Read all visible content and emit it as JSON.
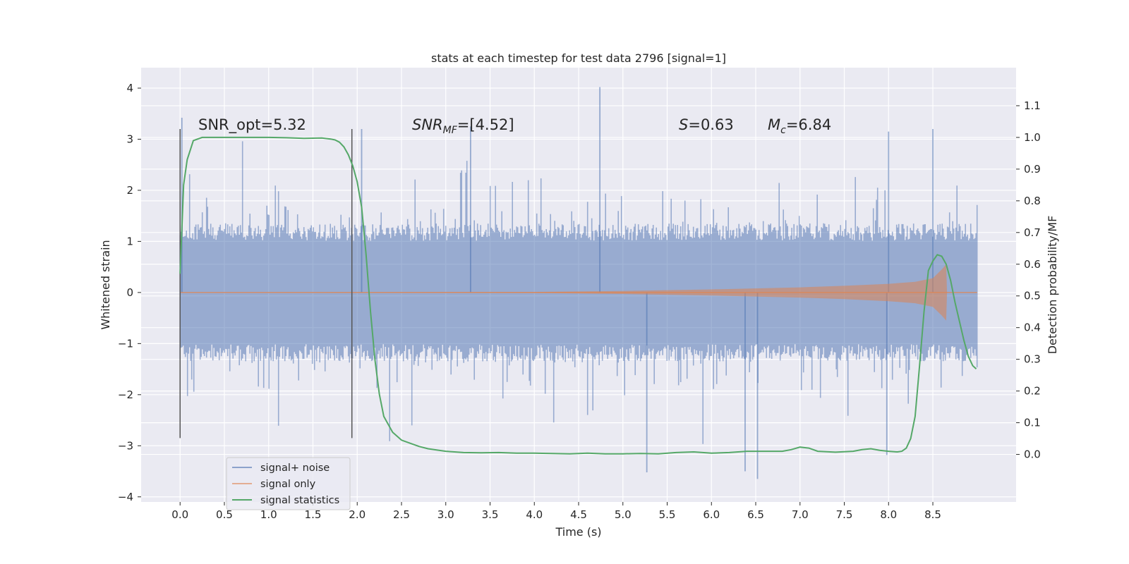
{
  "chart_data": {
    "type": "line",
    "title": "stats at each timestep for test data 2796 [signal=1]",
    "xlabel": "Time (s)",
    "ylabel": "Whitened strain",
    "y2label": "Detection probability/MF",
    "xlim": [
      -0.44,
      9.44
    ],
    "ylim": [
      -4.1,
      4.4
    ],
    "y2lim": [
      -0.15,
      1.22
    ],
    "x_ticks": [
      0.0,
      0.5,
      1.0,
      1.5,
      2.0,
      2.5,
      3.0,
      3.5,
      4.0,
      4.5,
      5.0,
      5.5,
      6.0,
      6.5,
      7.0,
      7.5,
      8.0,
      8.5
    ],
    "x_tick_labels": [
      "0.0",
      "0.5",
      "1.0",
      "1.5",
      "2.0",
      "2.5",
      "3.0",
      "3.5",
      "4.0",
      "4.5",
      "5.0",
      "5.5",
      "6.0",
      "6.5",
      "7.0",
      "7.5",
      "8.0",
      "8.5"
    ],
    "y_ticks": [
      -4,
      -3,
      -2,
      -1,
      0,
      1,
      2,
      3,
      4
    ],
    "y_tick_labels": [
      "−4",
      "−3",
      "−2",
      "−1",
      "0",
      "1",
      "2",
      "3",
      "4"
    ],
    "y2_ticks": [
      0.0,
      0.1,
      0.2,
      0.3,
      0.4,
      0.5,
      0.6,
      0.7,
      0.8,
      0.9,
      1.0,
      1.1
    ],
    "y2_tick_labels": [
      "0.0",
      "0.1",
      "0.2",
      "0.3",
      "0.4",
      "0.5",
      "0.6",
      "0.7",
      "0.8",
      "0.9",
      "1.0",
      "1.1"
    ],
    "annotations": {
      "snr_opt": "SNR_opt=5.32",
      "snr_mf_main": "SNR",
      "snr_mf_sub": "MF",
      "snr_mf_value": "=[4.52]",
      "s_main": "S",
      "s_value": "=0.63",
      "mc_main": "M",
      "mc_sub": "c",
      "mc_value": "=6.84"
    },
    "markers": [
      {
        "x": 0.0,
        "y_range": [
          -2.85,
          3.2
        ]
      },
      {
        "x": 1.94,
        "y_range": [
          -2.85,
          3.2
        ]
      }
    ],
    "series": [
      {
        "name": "signal+ noise",
        "color": "#4c72b0",
        "x_range": [
          0.0,
          9.0
        ],
        "envelope_typical": [
          -1.35,
          1.35
        ],
        "peak_max": 4.02,
        "peak_min": -3.65,
        "notable_peaks": [
          {
            "x": 0.02,
            "y": 3.42
          },
          {
            "x": 2.05,
            "y": 3.2
          },
          {
            "x": 3.28,
            "y": 3.25
          },
          {
            "x": 4.74,
            "y": 4.02
          },
          {
            "x": 5.27,
            "y": -3.52
          },
          {
            "x": 6.38,
            "y": -3.5
          },
          {
            "x": 6.52,
            "y": -3.65
          },
          {
            "x": 8.0,
            "y": 3.15
          },
          {
            "x": 8.5,
            "y": 3.2
          },
          {
            "x": 7.98,
            "y": -3.18
          }
        ]
      },
      {
        "name": "signal only",
        "color": "#dd8452",
        "x": [
          0.0,
          4.0,
          5.0,
          6.0,
          7.0,
          7.5,
          8.0,
          8.3,
          8.5,
          8.6,
          8.65,
          8.66,
          9.0
        ],
        "amplitude": [
          0.0,
          0.01,
          0.03,
          0.06,
          0.1,
          0.13,
          0.17,
          0.21,
          0.28,
          0.45,
          0.55,
          0.0,
          0.0
        ]
      },
      {
        "name": "signal statistics",
        "color": "#55a868",
        "axis": "right",
        "x": [
          0.0,
          0.04,
          0.08,
          0.15,
          0.25,
          0.4,
          0.6,
          0.8,
          1.0,
          1.2,
          1.4,
          1.6,
          1.7,
          1.75,
          1.8,
          1.85,
          1.9,
          1.95,
          2.0,
          2.05,
          2.1,
          2.15,
          2.2,
          2.25,
          2.3,
          2.4,
          2.5,
          2.6,
          2.7,
          2.8,
          3.0,
          3.2,
          3.4,
          3.6,
          3.8,
          4.0,
          4.2,
          4.4,
          4.6,
          4.8,
          5.0,
          5.2,
          5.4,
          5.6,
          5.8,
          6.0,
          6.2,
          6.4,
          6.6,
          6.8,
          6.9,
          7.0,
          7.1,
          7.2,
          7.4,
          7.6,
          7.7,
          7.8,
          7.9,
          8.0,
          8.1,
          8.15,
          8.2,
          8.25,
          8.3,
          8.35,
          8.4,
          8.45,
          8.5,
          8.55,
          8.6,
          8.65,
          8.7,
          8.75,
          8.8,
          8.85,
          8.9,
          8.95,
          8.99
        ],
        "y": [
          0.57,
          0.85,
          0.93,
          0.99,
          1.0,
          1.0,
          1.0,
          1.0,
          1.0,
          0.999,
          0.997,
          0.998,
          0.995,
          0.992,
          0.985,
          0.97,
          0.945,
          0.91,
          0.86,
          0.78,
          0.63,
          0.45,
          0.3,
          0.19,
          0.12,
          0.07,
          0.045,
          0.035,
          0.025,
          0.018,
          0.01,
          0.006,
          0.005,
          0.006,
          0.004,
          0.004,
          0.003,
          0.002,
          0.004,
          0.002,
          0.002,
          0.003,
          0.002,
          0.006,
          0.008,
          0.004,
          0.006,
          0.01,
          0.01,
          0.01,
          0.015,
          0.023,
          0.02,
          0.01,
          0.007,
          0.01,
          0.015,
          0.018,
          0.013,
          0.01,
          0.008,
          0.01,
          0.02,
          0.05,
          0.12,
          0.28,
          0.45,
          0.58,
          0.61,
          0.63,
          0.625,
          0.6,
          0.55,
          0.48,
          0.42,
          0.36,
          0.31,
          0.28,
          0.27
        ]
      }
    ],
    "legend": {
      "location": "lower-left",
      "entries": [
        "signal+ noise",
        "signal only",
        "signal statistics"
      ]
    },
    "grid": true
  },
  "colors": {
    "axes_bg": "#eaeaf2",
    "grid": "#ffffff",
    "noise": "#4c72b0",
    "signal": "#dd8452",
    "stats": "#55a868"
  }
}
